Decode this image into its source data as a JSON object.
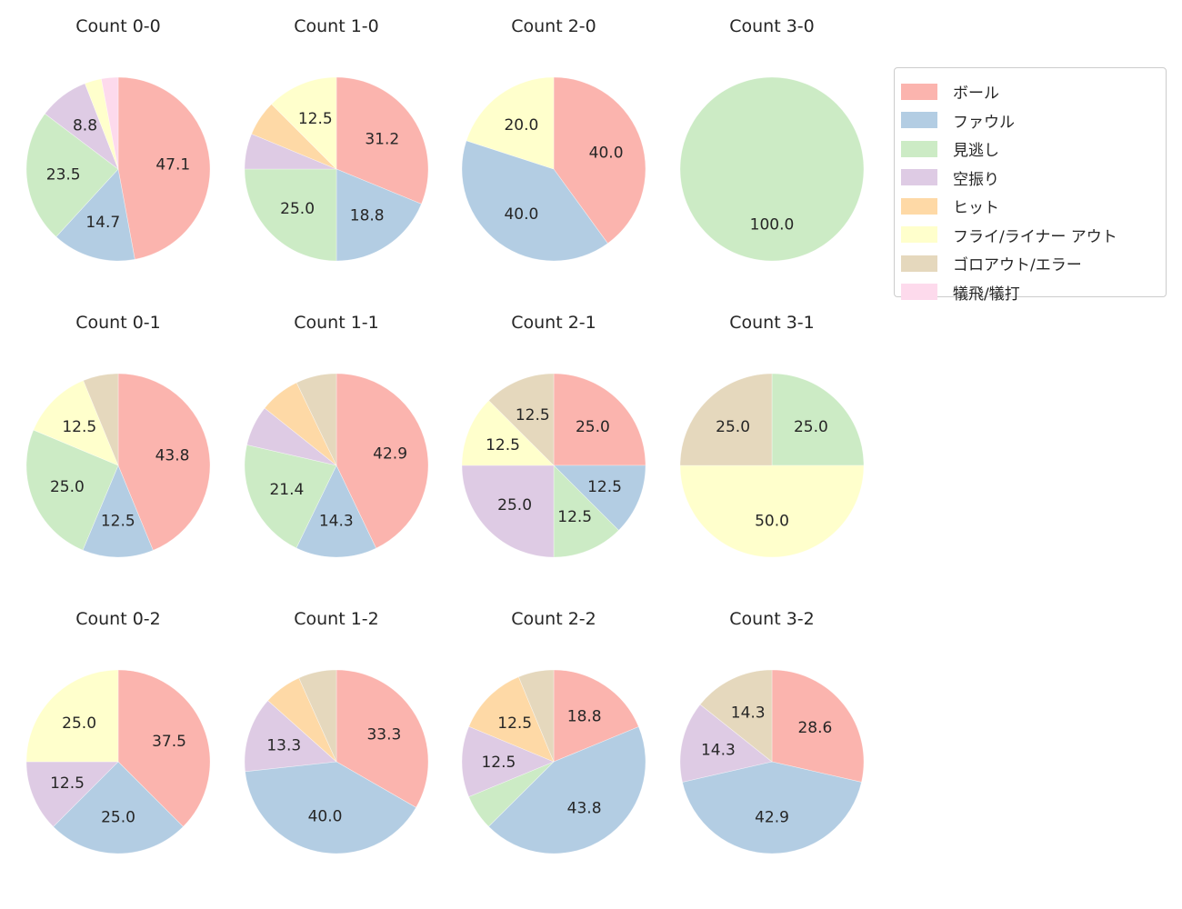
{
  "page": {
    "background": "#ffffff",
    "text_color": "#262626"
  },
  "legend": {
    "position": "upper right",
    "items": [
      {
        "label": "ボール",
        "color": "#fbb4ae"
      },
      {
        "label": "ファウル",
        "color": "#b3cde3"
      },
      {
        "label": "見逃し",
        "color": "#ccebc5"
      },
      {
        "label": "空振り",
        "color": "#decbe4"
      },
      {
        "label": "ヒット",
        "color": "#fed9a6"
      },
      {
        "label": "フライ/ライナー アウト",
        "color": "#ffffcc"
      },
      {
        "label": "ゴロアウト/エラー",
        "color": "#e5d8bd"
      },
      {
        "label": "犠飛/犠打",
        "color": "#fddaec"
      }
    ]
  },
  "chart_data": {
    "type": "pie",
    "value_unit": "percent",
    "slice_order": "clockwise from 12 o'clock",
    "grid": {
      "rows": 3,
      "cols": 4
    },
    "legend_position": "upper right",
    "charts": [
      {
        "title": "Count 0-0",
        "slices": [
          {
            "category": "ボール",
            "value": 47.1,
            "label": "47.1"
          },
          {
            "category": "ファウル",
            "value": 14.7,
            "label": "14.7"
          },
          {
            "category": "見逃し",
            "value": 23.5,
            "label": "23.5"
          },
          {
            "category": "空振り",
            "value": 8.8,
            "label": "8.8"
          },
          {
            "category": "フライ/ライナー アウト",
            "value": 2.95,
            "label": ""
          },
          {
            "category": "犠飛/犠打",
            "value": 2.95,
            "label": ""
          }
        ]
      },
      {
        "title": "Count 1-0",
        "slices": [
          {
            "category": "ボール",
            "value": 31.2,
            "label": "31.2"
          },
          {
            "category": "ファウル",
            "value": 18.8,
            "label": "18.8"
          },
          {
            "category": "見逃し",
            "value": 25.0,
            "label": "25.0"
          },
          {
            "category": "空振り",
            "value": 6.25,
            "label": ""
          },
          {
            "category": "ヒット",
            "value": 6.25,
            "label": ""
          },
          {
            "category": "フライ/ライナー アウト",
            "value": 12.5,
            "label": "12.5"
          }
        ]
      },
      {
        "title": "Count 2-0",
        "slices": [
          {
            "category": "ボール",
            "value": 40.0,
            "label": "40.0"
          },
          {
            "category": "ファウル",
            "value": 40.0,
            "label": "40.0"
          },
          {
            "category": "フライ/ライナー アウト",
            "value": 20.0,
            "label": "20.0"
          }
        ]
      },
      {
        "title": "Count 3-0",
        "slices": [
          {
            "category": "見逃し",
            "value": 100.0,
            "label": "100.0"
          }
        ]
      },
      {
        "title": "Count 0-1",
        "slices": [
          {
            "category": "ボール",
            "value": 43.8,
            "label": "43.8"
          },
          {
            "category": "ファウル",
            "value": 12.5,
            "label": "12.5"
          },
          {
            "category": "見逃し",
            "value": 25.0,
            "label": "25.0"
          },
          {
            "category": "フライ/ライナー アウト",
            "value": 12.5,
            "label": "12.5"
          },
          {
            "category": "ゴロアウト/エラー",
            "value": 6.2,
            "label": ""
          }
        ]
      },
      {
        "title": "Count 1-1",
        "slices": [
          {
            "category": "ボール",
            "value": 42.9,
            "label": "42.9"
          },
          {
            "category": "ファウル",
            "value": 14.3,
            "label": "14.3"
          },
          {
            "category": "見逃し",
            "value": 21.4,
            "label": "21.4"
          },
          {
            "category": "空振り",
            "value": 7.14,
            "label": ""
          },
          {
            "category": "ヒット",
            "value": 7.14,
            "label": ""
          },
          {
            "category": "ゴロアウト/エラー",
            "value": 7.14,
            "label": ""
          }
        ]
      },
      {
        "title": "Count 2-1",
        "slices": [
          {
            "category": "ボール",
            "value": 25.0,
            "label": "25.0"
          },
          {
            "category": "ファウル",
            "value": 12.5,
            "label": "12.5"
          },
          {
            "category": "見逃し",
            "value": 12.5,
            "label": "12.5"
          },
          {
            "category": "空振り",
            "value": 25.0,
            "label": "25.0"
          },
          {
            "category": "フライ/ライナー アウト",
            "value": 12.5,
            "label": "12.5"
          },
          {
            "category": "ゴロアウト/エラー",
            "value": 12.5,
            "label": "12.5"
          }
        ]
      },
      {
        "title": "Count 3-1",
        "slices": [
          {
            "category": "見逃し",
            "value": 25.0,
            "label": "25.0"
          },
          {
            "category": "フライ/ライナー アウト",
            "value": 50.0,
            "label": "50.0"
          },
          {
            "category": "ゴロアウト/エラー",
            "value": 25.0,
            "label": "25.0"
          }
        ]
      },
      {
        "title": "Count 0-2",
        "slices": [
          {
            "category": "ボール",
            "value": 37.5,
            "label": "37.5"
          },
          {
            "category": "ファウル",
            "value": 25.0,
            "label": "25.0"
          },
          {
            "category": "空振り",
            "value": 12.5,
            "label": "12.5"
          },
          {
            "category": "フライ/ライナー アウト",
            "value": 25.0,
            "label": "25.0"
          }
        ]
      },
      {
        "title": "Count 1-2",
        "slices": [
          {
            "category": "ボール",
            "value": 33.3,
            "label": "33.3"
          },
          {
            "category": "ファウル",
            "value": 40.0,
            "label": "40.0"
          },
          {
            "category": "空振り",
            "value": 13.3,
            "label": "13.3"
          },
          {
            "category": "ヒット",
            "value": 6.7,
            "label": ""
          },
          {
            "category": "ゴロアウト/エラー",
            "value": 6.7,
            "label": ""
          }
        ]
      },
      {
        "title": "Count 2-2",
        "slices": [
          {
            "category": "ボール",
            "value": 18.8,
            "label": "18.8"
          },
          {
            "category": "ファウル",
            "value": 43.8,
            "label": "43.8"
          },
          {
            "category": "見逃し",
            "value": 6.25,
            "label": ""
          },
          {
            "category": "空振り",
            "value": 12.5,
            "label": "12.5"
          },
          {
            "category": "ヒット",
            "value": 12.5,
            "label": "12.5"
          },
          {
            "category": "ゴロアウト/エラー",
            "value": 6.25,
            "label": ""
          }
        ]
      },
      {
        "title": "Count 3-2",
        "slices": [
          {
            "category": "ボール",
            "value": 28.6,
            "label": "28.6"
          },
          {
            "category": "ファウル",
            "value": 42.9,
            "label": "42.9"
          },
          {
            "category": "空振り",
            "value": 14.3,
            "label": "14.3"
          },
          {
            "category": "ゴロアウト/エラー",
            "value": 14.3,
            "label": "14.3"
          }
        ]
      }
    ]
  }
}
